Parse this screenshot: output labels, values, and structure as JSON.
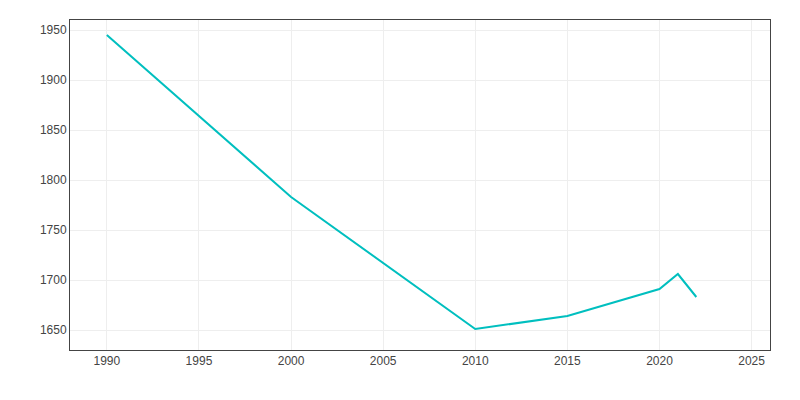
{
  "chart_data": {
    "type": "line",
    "x": [
      1990,
      2000,
      2010,
      2015,
      2020,
      2021,
      2022
    ],
    "values": [
      1945,
      1783,
      1651,
      1664,
      1691,
      1706,
      1683
    ],
    "color": "#00BFBF",
    "xlim": [
      1988,
      2026
    ],
    "xticks": [
      1990,
      1995,
      2000,
      2005,
      2010,
      2015,
      2020,
      2025
    ],
    "ylim": [
      1630,
      1960
    ],
    "yticks": [
      1650,
      1700,
      1750,
      1800,
      1850,
      1900,
      1950
    ],
    "grid": true
  }
}
